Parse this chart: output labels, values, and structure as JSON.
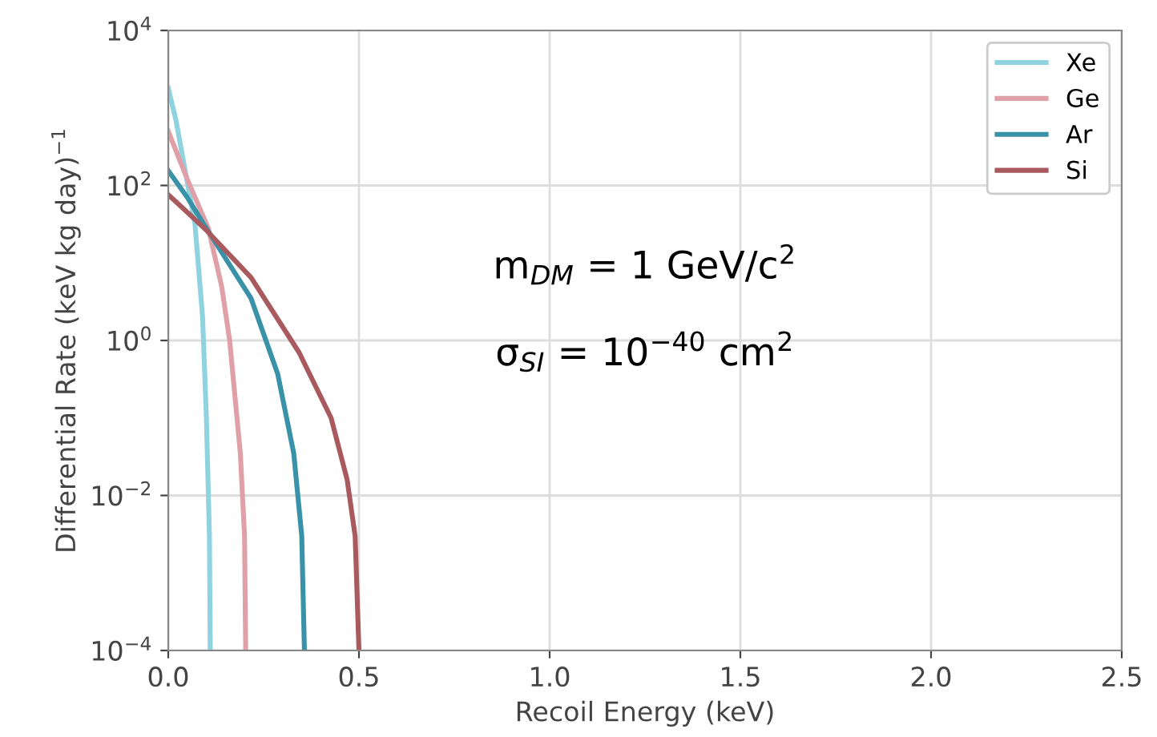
{
  "chart_data": {
    "type": "line",
    "xlabel": "Recoil Energy (keV)",
    "ylabel": "Differential Rate (keV kg day)$^{−1}$",
    "log": "y",
    "grid": true,
    "legend": "top right",
    "line_style": "solid",
    "marker": "none",
    "xlim": [
      0,
      2.5
    ],
    "ylim": [
      0.0001,
      10000
    ],
    "xticks": [
      {
        "value": 0,
        "label": "0.0"
      },
      {
        "value": 0.5,
        "label": "0.5"
      },
      {
        "value": 1,
        "label": "1.0"
      },
      {
        "value": 1.5,
        "label": "1.5"
      },
      {
        "value": 2,
        "label": "2.0"
      },
      {
        "value": 2.5,
        "label": "2.5"
      }
    ],
    "yticks": [
      {
        "value": 0.0001,
        "label": "10$^{−4}$"
      },
      {
        "value": 0.01,
        "label": "10$^{−2}$"
      },
      {
        "value": 1,
        "label": "10$^{0}$"
      },
      {
        "value": 100,
        "label": "10$^{2}$"
      },
      {
        "value": 10000,
        "label": "10$^{4}$"
      }
    ],
    "annotations": [
      "m$_{DM}$ = 1 GeV/c$^{2}$",
      "σ$_{SI}$ = 10$^{−40}$ cm$^{2}$"
    ],
    "series": [
      {
        "name": "Xe",
        "color": "#8fd3e0",
        "x": [
          0,
          0.02,
          0.05,
          0.07,
          0.09,
          0.1,
          0.108,
          0.11
        ],
        "values": [
          1800,
          700,
          110,
          32,
          2,
          0.1,
          0.003,
          0.0001
        ]
      },
      {
        "name": "Ge",
        "color": "#e0a0a8",
        "x": [
          0,
          0.05,
          0.105,
          0.14,
          0.161,
          0.189,
          0.2,
          0.203
        ],
        "values": [
          500,
          120,
          28,
          5,
          1,
          0.035,
          0.003,
          0.0001
        ]
      },
      {
        "name": "Ar",
        "color": "#3a92a8",
        "x": [
          0,
          0.05,
          0.098,
          0.217,
          0.287,
          0.329,
          0.35,
          0.357
        ],
        "values": [
          155,
          70,
          29,
          3.5,
          0.37,
          0.035,
          0.003,
          0.0001
        ]
      },
      {
        "name": "Si",
        "color": "#a85a5e",
        "x": [
          0,
          0.05,
          0.098,
          0.217,
          0.343,
          0.427,
          0.469,
          0.49,
          0.5
        ],
        "values": [
          76,
          45,
          27,
          6.5,
          0.7,
          0.1,
          0.016,
          0.003,
          0.0001
        ]
      }
    ]
  }
}
